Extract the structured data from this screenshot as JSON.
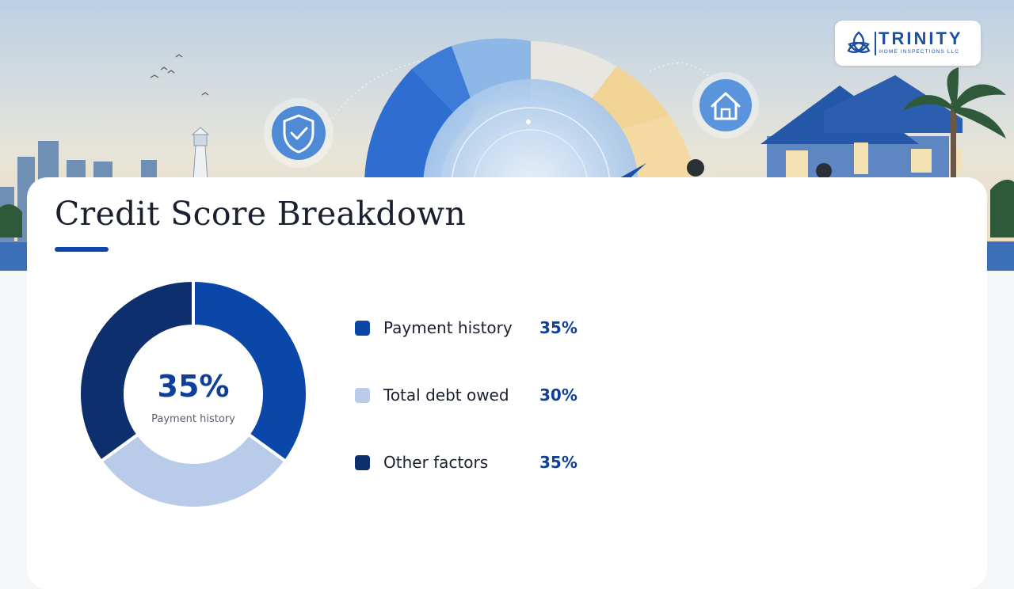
{
  "brand": {
    "name": "TRINITY",
    "tagline": "HOME INSPECTIONS LLC",
    "color": "#1d4fa3"
  },
  "hero": {
    "icons": [
      "shield-check-icon",
      "house-icon"
    ]
  },
  "slide": {
    "title": "Credit Score Breakdown",
    "accent_color": "#0a47a8"
  },
  "chart_data": {
    "type": "pie",
    "donut": true,
    "center": {
      "value": "35%",
      "label": "Payment history"
    },
    "categories": [
      "Payment history",
      "Total debt owed",
      "Other factors"
    ],
    "values": [
      35,
      30,
      35
    ],
    "value_labels": [
      "35%",
      "30%",
      "35%"
    ],
    "colors": [
      "#0a47a8",
      "#b8cbe8",
      "#0d2f6e"
    ],
    "legend_position": "right"
  }
}
